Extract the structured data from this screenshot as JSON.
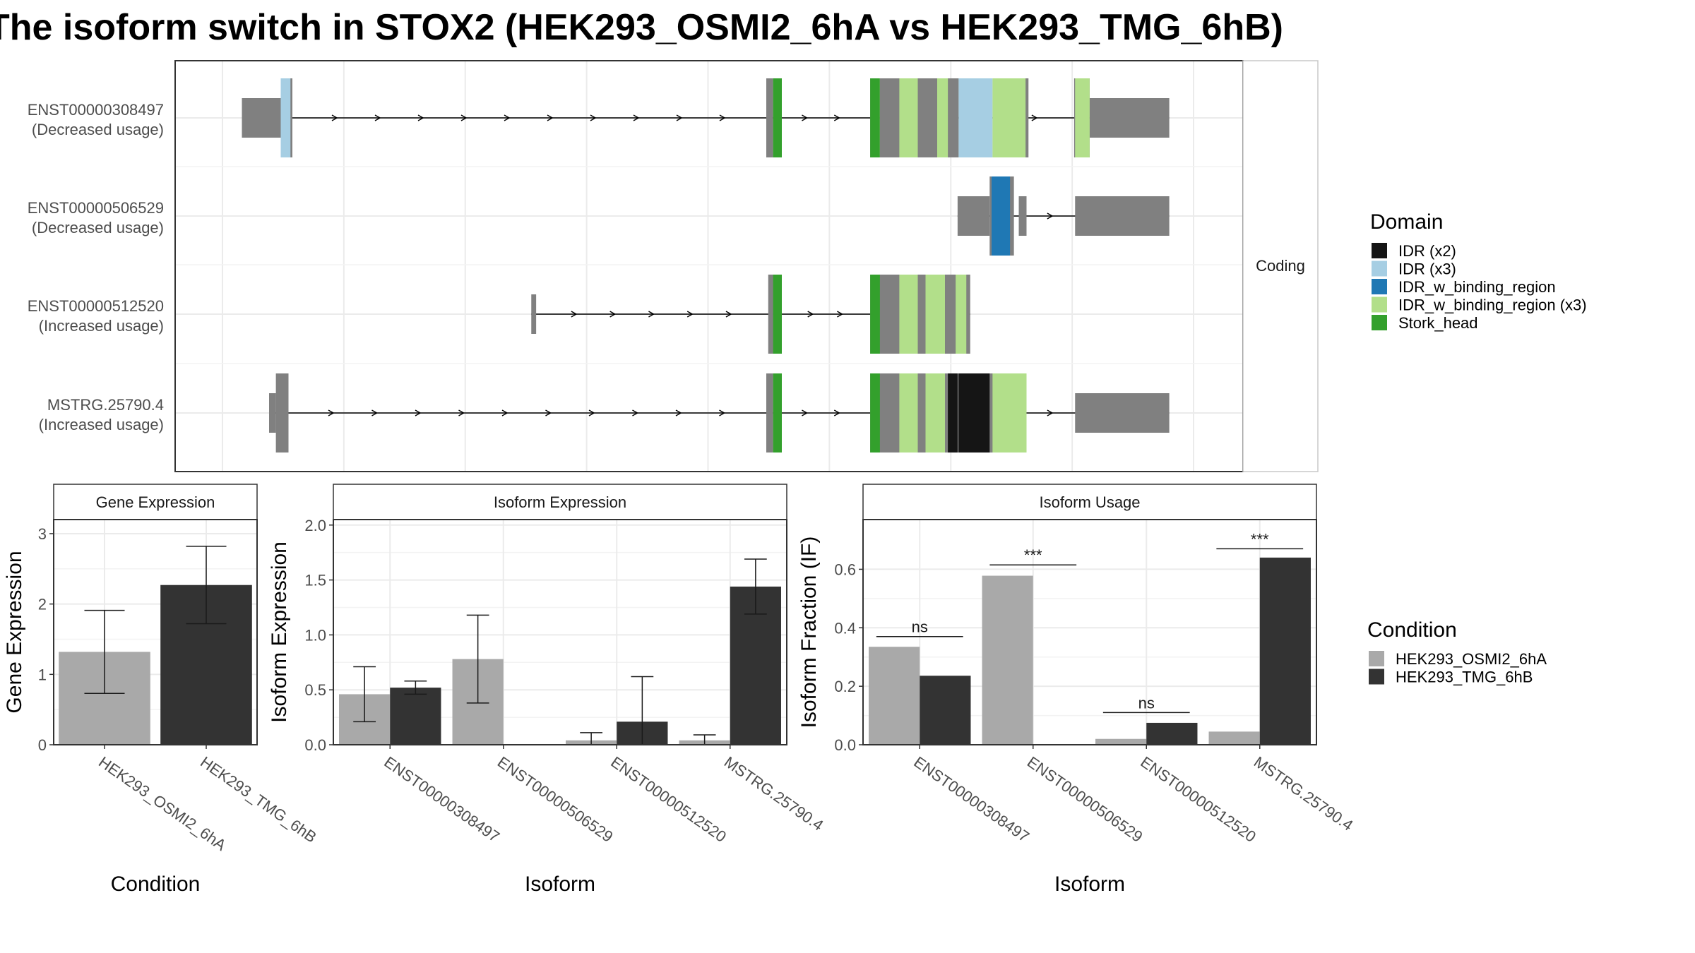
{
  "title": "The isoform switch in STOX2 (HEK293_OSMI2_6hA vs HEK293_TMG_6hB)",
  "colors": {
    "cond1": "#A9A9A9",
    "cond2": "#333333",
    "exon": "#808080",
    "intron": "#000000",
    "grid": "#EBEBEB",
    "panel_border": "#333333",
    "strip_fill": "#FFFFFF",
    "facet_strip_border": "#C8C8C8"
  },
  "legends": {
    "domain": {
      "title": "Domain",
      "items": [
        {
          "label": "IDR (x2)",
          "color": "#151515"
        },
        {
          "label": "IDR (x3)",
          "color": "#A6CEE3"
        },
        {
          "label": "IDR_w_binding_region",
          "color": "#1F78B4"
        },
        {
          "label": "IDR_w_binding_region (x3)",
          "color": "#B2DF8A"
        },
        {
          "label": "Stork_head",
          "color": "#33A02C"
        }
      ]
    },
    "condition": {
      "title": "Condition",
      "items": [
        {
          "label": "HEK293_OSMI2_6hA",
          "color": "#A9A9A9"
        },
        {
          "label": "HEK293_TMG_6hB",
          "color": "#333333"
        }
      ]
    }
  },
  "chart_data": [
    {
      "type": "other",
      "kind": "isoform-structure",
      "facet_label": "Coding",
      "x_domain": [
        0,
        1000
      ],
      "isoforms": [
        {
          "id": "ENST00000308497",
          "usage": "(Decreased usage)",
          "exons": [
            [
              20,
              60,
              "utr"
            ],
            [
              60,
              72,
              "cds"
            ],
            [
              560,
              567,
              "cds"
            ],
            [
              667,
              677,
              "cds"
            ],
            [
              877,
              893,
              "cds"
            ],
            [
              893,
              975,
              "utr"
            ]
          ],
          "domains": [
            [
              60,
              70,
              "#A6CEE3"
            ],
            [
              567,
              576,
              "#33A02C"
            ],
            [
              667,
              677,
              "#33A02C"
            ],
            [
              677,
              750,
              "#B2DF8A"
            ],
            [
              697,
              716,
              "#B2DF8A"
            ],
            [
              736,
              758,
              "#B2DF8A"
            ],
            [
              758,
              793,
              "#A6CEE3"
            ],
            [
              793,
              828,
              "#B2DF8A"
            ],
            [
              878,
              893,
              "#B2DF8A"
            ]
          ],
          "cds_segments": [
            [
              677,
              697
            ],
            [
              716,
              724
            ],
            [
              724,
              736
            ],
            [
              747,
              758
            ],
            [
              827,
              830
            ]
          ]
        },
        {
          "id": "ENST00000506529",
          "usage": "(Decreased usage)",
          "exons": [
            [
              757,
              790,
              "utr"
            ],
            [
              790,
              812,
              "cds"
            ],
            [
              812,
              815,
              "cds"
            ],
            [
              820,
              828,
              "utr"
            ],
            [
              878,
              975,
              "utr"
            ]
          ],
          "domains": [
            [
              792,
              811,
              "#1F78B4"
            ]
          ],
          "cds_segments": []
        },
        {
          "id": "ENST00000512520",
          "usage": "(Increased usage)",
          "exons": [
            [
              318,
              323,
              "utr"
            ],
            [
              562,
              567,
              "cds"
            ],
            [
              567,
              576,
              "cds"
            ],
            [
              667,
              770,
              "cds"
            ]
          ],
          "domains": [
            [
              567,
              576,
              "#33A02C"
            ],
            [
              667,
              677,
              "#33A02C"
            ],
            [
              697,
              716,
              "#B2DF8A"
            ],
            [
              724,
              744,
              "#B2DF8A"
            ],
            [
              755,
              766,
              "#B2DF8A"
            ]
          ],
          "cds_segments": []
        },
        {
          "id": "MSTRG.25790.4",
          "usage": "(Increased usage)",
          "exons": [
            [
              48,
              55,
              "utr"
            ],
            [
              55,
              68,
              "cds"
            ],
            [
              560,
              567,
              "cds"
            ],
            [
              667,
              828,
              "cds"
            ],
            [
              820,
              828,
              "utr"
            ],
            [
              878,
              975,
              "utr"
            ]
          ],
          "domains": [
            [
              567,
              576,
              "#33A02C"
            ],
            [
              667,
              677,
              "#33A02C"
            ],
            [
              697,
              716,
              "#B2DF8A"
            ],
            [
              724,
              744,
              "#B2DF8A"
            ],
            [
              747,
              757,
              "#151515"
            ],
            [
              758,
              790,
              "#151515"
            ],
            [
              793,
              828,
              "#B2DF8A"
            ]
          ],
          "cds_segments": []
        }
      ]
    },
    {
      "type": "bar",
      "title": "Gene Expression",
      "xlabel": "Condition",
      "ylabel": "Gene Expression",
      "ylim": [
        0,
        3.2
      ],
      "yticks": [
        "0",
        "1",
        "2",
        "3"
      ],
      "ytick_values": [
        0,
        1,
        2,
        3
      ],
      "categories": [
        "HEK293_OSMI2_6hA",
        "HEK293_TMG_6hB"
      ],
      "values": [
        1.32,
        2.27
      ],
      "errors": [
        [
          0.73,
          1.91
        ],
        [
          1.72,
          2.82
        ]
      ],
      "colors": [
        "#A9A9A9",
        "#333333"
      ]
    },
    {
      "type": "bar",
      "title": "Isoform Expression",
      "xlabel": "Isoform",
      "ylabel": "Isoform Expression",
      "ylim": [
        0,
        2.05
      ],
      "yticks": [
        "0.0",
        "0.5",
        "1.0",
        "1.5",
        "2.0"
      ],
      "ytick_values": [
        0,
        0.5,
        1.0,
        1.5,
        2.0
      ],
      "categories": [
        "ENST00000308497",
        "ENST00000506529",
        "ENST00000512520",
        "MSTRG.25790.4"
      ],
      "series": [
        {
          "name": "HEK293_OSMI2_6hA",
          "values": [
            0.46,
            0.78,
            0.04,
            0.04
          ],
          "errors": [
            [
              0.21,
              0.71
            ],
            [
              0.38,
              1.18
            ],
            [
              0.0,
              0.11
            ],
            [
              0.0,
              0.09
            ]
          ]
        },
        {
          "name": "HEK293_TMG_6hB",
          "values": [
            0.52,
            0.0,
            0.21,
            1.44
          ],
          "errors": [
            [
              0.46,
              0.58
            ],
            [
              0.0,
              0.0
            ],
            [
              0.0,
              0.62
            ],
            [
              1.19,
              1.69
            ]
          ]
        }
      ]
    },
    {
      "type": "bar",
      "title": "Isoform Usage",
      "xlabel": "Isoform",
      "ylabel": "Isoform Fraction (IF)",
      "ylim": [
        0,
        0.77
      ],
      "yticks": [
        "0.0",
        "0.2",
        "0.4",
        "0.6"
      ],
      "ytick_values": [
        0,
        0.2,
        0.4,
        0.6
      ],
      "categories": [
        "ENST00000308497",
        "ENST00000506529",
        "ENST00000512520",
        "MSTRG.25790.4"
      ],
      "series": [
        {
          "name": "HEK293_OSMI2_6hA",
          "values": [
            0.335,
            0.578,
            0.02,
            0.045
          ]
        },
        {
          "name": "HEK293_TMG_6hB",
          "values": [
            0.236,
            0.0,
            0.075,
            0.64
          ]
        }
      ],
      "significance": [
        {
          "label": "ns",
          "y": 0.37
        },
        {
          "label": "***",
          "y": 0.615
        },
        {
          "label": "ns",
          "y": 0.11
        },
        {
          "label": "***",
          "y": 0.67
        }
      ]
    }
  ]
}
